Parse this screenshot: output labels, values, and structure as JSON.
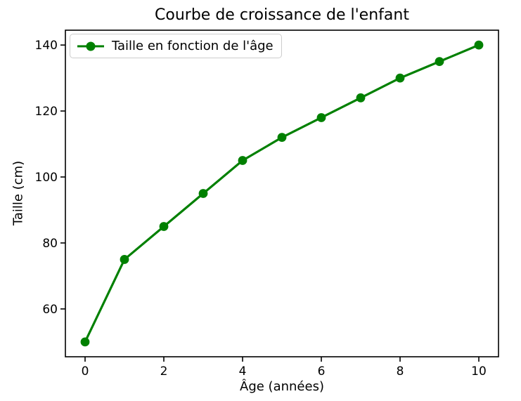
{
  "figure": {
    "background": "#ffffff"
  },
  "chart_data": {
    "type": "line",
    "title": "Courbe de croissance de l'enfant",
    "xlabel": "Âge (années)",
    "ylabel": "Taille (cm)",
    "x": [
      0,
      1,
      2,
      3,
      4,
      5,
      6,
      7,
      8,
      9,
      10
    ],
    "series": [
      {
        "name": "Taille en fonction de l'âge",
        "values": [
          50,
          75,
          85,
          95,
          105,
          112,
          118,
          124,
          130,
          135,
          140
        ],
        "color": "#008000",
        "marker": "circle",
        "line_style": "solid"
      }
    ],
    "xticks": [
      0,
      2,
      4,
      6,
      8,
      10
    ],
    "yticks": [
      60,
      80,
      100,
      120,
      140
    ],
    "xlim": [
      -0.5,
      10.5
    ],
    "ylim": [
      45.5,
      144.5
    ],
    "grid": false,
    "legend": {
      "position": "upper-left",
      "border_color": "#cccccc",
      "background": "#ffffff"
    },
    "colors": {
      "axes": "#000000",
      "text": "#000000",
      "plot_background": "#ffffff"
    }
  }
}
